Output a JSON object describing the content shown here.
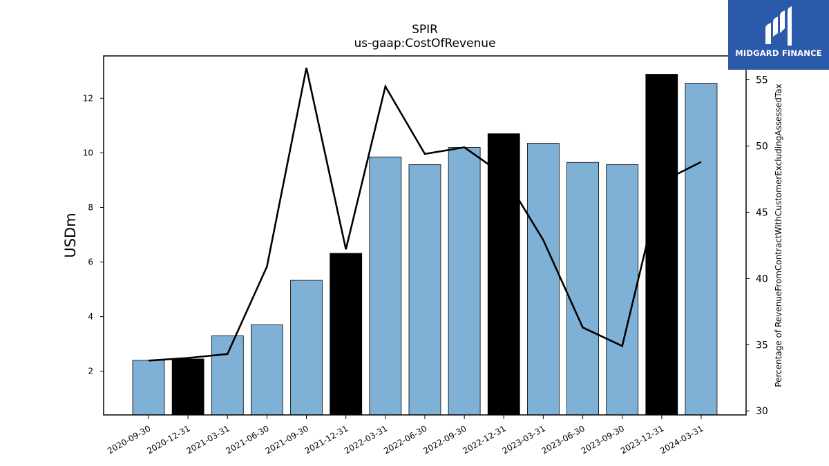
{
  "chart_data": {
    "type": "bar",
    "title": "SPIR",
    "subtitle": "us-gaap:CostOfRevenue",
    "ylabel": "USDm",
    "ylabel_right": "Percentage of RevenueFromContractWithCustomerExcludingAssessedTax",
    "categories": [
      "2020-09-30",
      "2020-12-31",
      "2021-03-31",
      "2021-06-30",
      "2021-09-30",
      "2021-12-31",
      "2022-03-31",
      "2022-06-30",
      "2022-09-30",
      "2022-12-31",
      "2023-03-31",
      "2023-06-30",
      "2023-09-30",
      "2023-12-31",
      "2024-03-31"
    ],
    "series": [
      {
        "type": "bar",
        "axis": "left",
        "values": [
          2.4,
          2.45,
          3.3,
          3.7,
          5.33,
          6.32,
          9.85,
          9.57,
          10.2,
          10.7,
          10.35,
          9.65,
          9.57,
          12.88,
          12.55
        ],
        "colors": [
          "#7fb0d5",
          "#000000",
          "#7fb0d5",
          "#7fb0d5",
          "#7fb0d5",
          "#000000",
          "#7fb0d5",
          "#7fb0d5",
          "#7fb0d5",
          "#000000",
          "#7fb0d5",
          "#7fb0d5",
          "#7fb0d5",
          "#000000",
          "#7fb0d5"
        ]
      },
      {
        "type": "line",
        "axis": "right",
        "color": "#000000",
        "values": [
          33.8,
          34.0,
          34.3,
          40.9,
          55.9,
          42.2,
          54.5,
          49.4,
          49.9,
          47.8,
          42.9,
          36.3,
          34.9,
          47.3,
          48.8
        ]
      }
    ],
    "ylim": [
      0.4,
      13.55
    ],
    "ylim_right": [
      29.7,
      56.8
    ],
    "yticks": [
      2,
      4,
      6,
      8,
      10,
      12
    ],
    "yticks_right": [
      30,
      35,
      40,
      45,
      50,
      55
    ],
    "grid": false
  },
  "logo": {
    "text": "MIDGARD FINANCE"
  }
}
